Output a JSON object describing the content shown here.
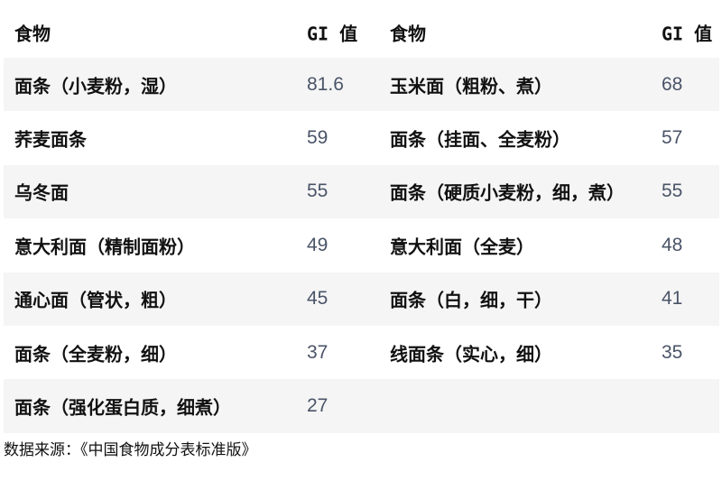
{
  "headers": {
    "food": "食物",
    "gi": "GI 值"
  },
  "rows": [
    {
      "left_food": "面条（小麦粉，湿）",
      "left_gi": "81.6",
      "right_food": "玉米面（粗粉、煮）",
      "right_gi": "68"
    },
    {
      "left_food": "荞麦面条",
      "left_gi": "59",
      "right_food": "面条（挂面、全麦粉）",
      "right_gi": "57"
    },
    {
      "left_food": "乌冬面",
      "left_gi": "55",
      "right_food": "面条（硬质小麦粉，细，煮）",
      "right_gi": "55"
    },
    {
      "left_food": "意大利面（精制面粉）",
      "left_gi": "49",
      "right_food": "意大利面（全麦）",
      "right_gi": "48"
    },
    {
      "left_food": "通心面（管状，粗）",
      "left_gi": "45",
      "right_food": "面条（白，细，干）",
      "right_gi": "41"
    },
    {
      "left_food": "面条（全麦粉，细）",
      "left_gi": "37",
      "right_food": "线面条（实心，细）",
      "right_gi": "35"
    },
    {
      "left_food": "面条（强化蛋白质，细煮）",
      "left_gi": "27",
      "right_food": "",
      "right_gi": ""
    }
  ],
  "footer": "数据来源：《中国食物成分表标准版》",
  "colors": {
    "stripe": "#f5f5f5",
    "value_text": "#4a5468",
    "text": "#111111"
  }
}
